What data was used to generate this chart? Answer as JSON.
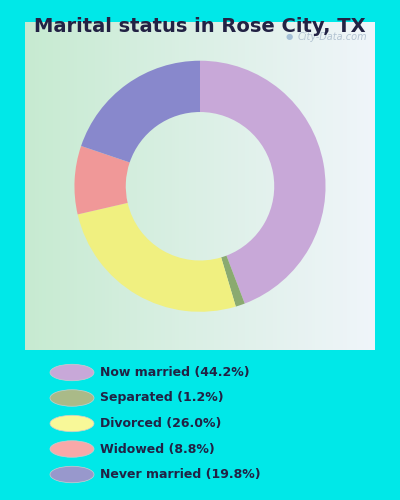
{
  "title": "Marital status in Rose City, TX",
  "slices": [
    44.2,
    1.2,
    26.0,
    8.8,
    19.8
  ],
  "labels": [
    "Now married (44.2%)",
    "Separated (1.2%)",
    "Divorced (26.0%)",
    "Widowed (8.8%)",
    "Never married (19.8%)"
  ],
  "colors": [
    "#c8a8d8",
    "#8aaa70",
    "#f0f080",
    "#f09898",
    "#8888cc"
  ],
  "legend_colors": [
    "#c8a8d8",
    "#aaba88",
    "#f8f898",
    "#f8a8a8",
    "#9898cc"
  ],
  "bg_cyan": "#00e8e8",
  "chart_bg_left": "#c8e8d0",
  "chart_bg_right": "#e8eef4",
  "title_color": "#222244",
  "title_fontsize": 14,
  "watermark": "City-Data.com",
  "start_angle": 90,
  "outer_r": 1.15,
  "inner_r": 0.68
}
